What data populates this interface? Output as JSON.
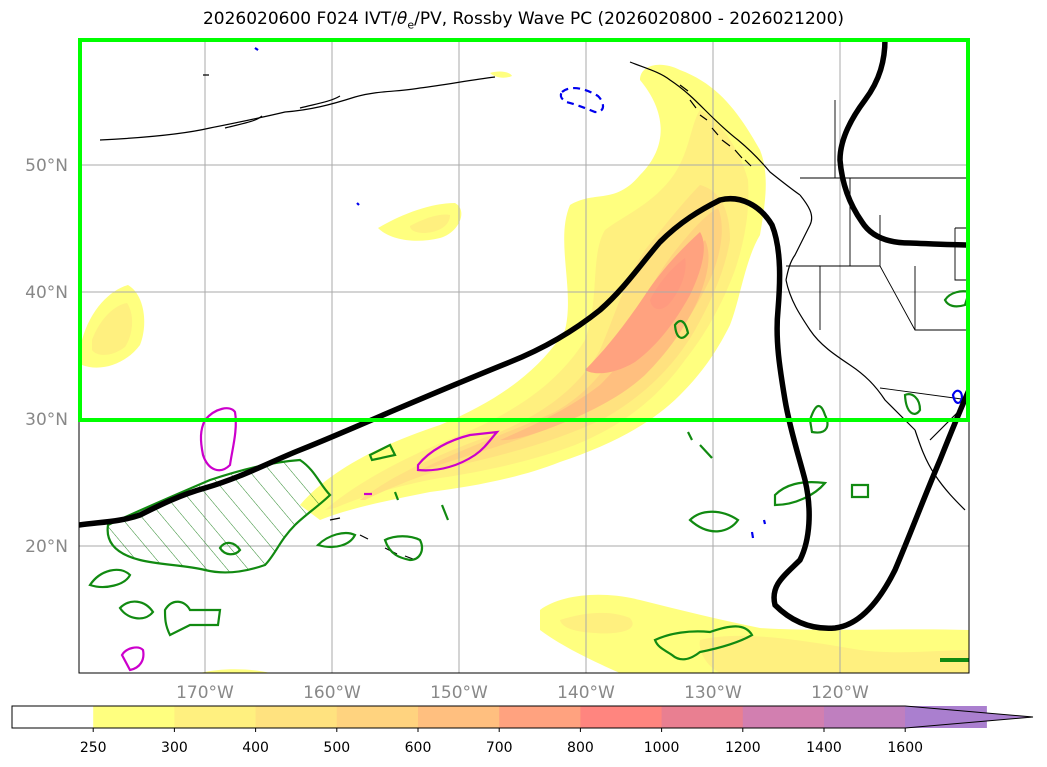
{
  "title_prefix": "2026020600 F024 IVT/",
  "title_theta": "θ",
  "title_sub": "e",
  "title_suffix": "/PV, Rossby Wave PC (2026020800 - 2026021200)",
  "latitude_labels": [
    "50°N",
    "40°N",
    "30°N",
    "20°N"
  ],
  "longitude_labels": [
    "170°W",
    "160°W",
    "150°W",
    "140°W",
    "130°W",
    "120°W"
  ],
  "colorbar": {
    "levels": [
      "250",
      "300",
      "400",
      "500",
      "600",
      "700",
      "800",
      "1000",
      "1200",
      "1400",
      "1600"
    ],
    "colors": [
      "#ffffff",
      "#ffff7f",
      "#fff07f",
      "#ffe27f",
      "#ffd37f",
      "#ffbf7f",
      "#ffa27f",
      "#ff857f",
      "#e97f91",
      "#d27fb0",
      "#bf7fbf",
      "#aa7fcf"
    ],
    "extend": "max"
  },
  "highlight_box_color": "#00ff00"
}
